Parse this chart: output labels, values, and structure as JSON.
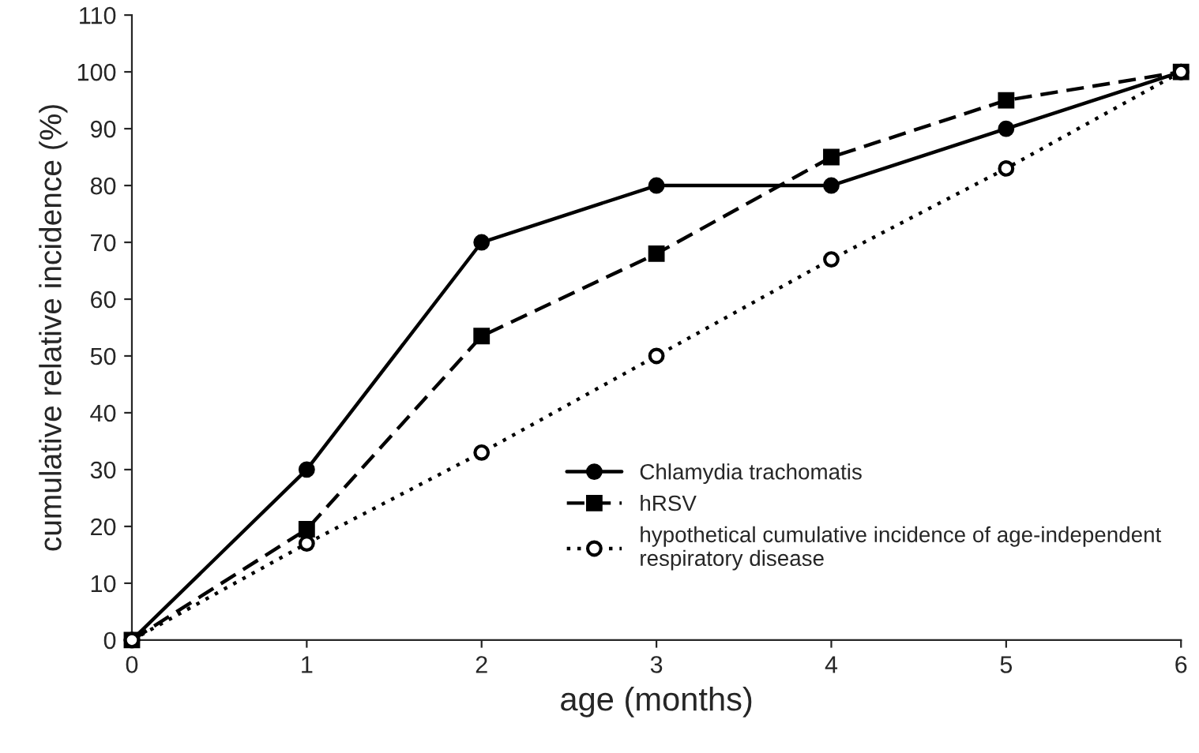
{
  "chart_data": {
    "type": "line",
    "xlabel": "age (months)",
    "ylabel": "cumulative relative incidence (%)",
    "x": [
      0,
      1,
      2,
      3,
      4,
      5,
      6
    ],
    "series": [
      {
        "name": "Chlamydia trachomatis",
        "color": "#000000",
        "values": [
          0,
          30,
          70,
          80,
          80,
          90,
          100
        ],
        "marker": "circle",
        "line_style": "solid"
      },
      {
        "name": "hRSV",
        "color": "#000000",
        "values": [
          0,
          19.5,
          53.5,
          68,
          85,
          95,
          100
        ],
        "marker": "square",
        "line_style": "dashed"
      },
      {
        "name": "hypothetical cumulative incidence of age-independent\nrespiratory disease",
        "color": "#000000",
        "values": [
          0,
          17,
          33,
          50,
          67,
          83,
          100
        ],
        "marker": "circle",
        "line_style": "dotted"
      }
    ],
    "xlim": [
      0,
      6
    ],
    "xticks": [
      0,
      1,
      2,
      3,
      4,
      5,
      6
    ],
    "ylim": [
      0,
      110
    ],
    "yticks": [
      0,
      10,
      20,
      30,
      40,
      50,
      60,
      70,
      80,
      90,
      100,
      110
    ],
    "grid": false,
    "legend": "bottom right"
  }
}
